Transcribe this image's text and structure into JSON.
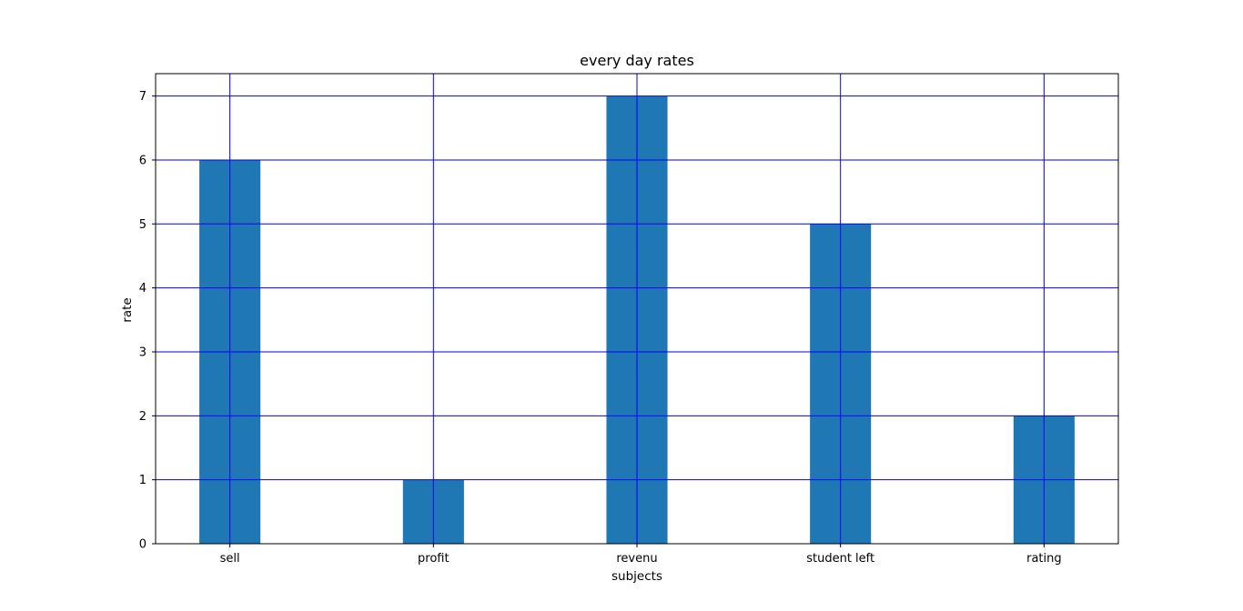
{
  "chart_data": {
    "type": "bar",
    "title": "every day rates",
    "xlabel": "subjects",
    "ylabel": "rate",
    "categories": [
      "sell",
      "profit",
      "revenu",
      "student left",
      "rating"
    ],
    "values": [
      6,
      1,
      7,
      5,
      2
    ],
    "ylim": [
      0,
      7.35
    ],
    "yticks": [
      "0",
      "1",
      "2",
      "3",
      "4",
      "5",
      "6",
      "7"
    ],
    "grid": true,
    "grid_color": "#0000ff",
    "bar_color": "#1f77b4"
  }
}
